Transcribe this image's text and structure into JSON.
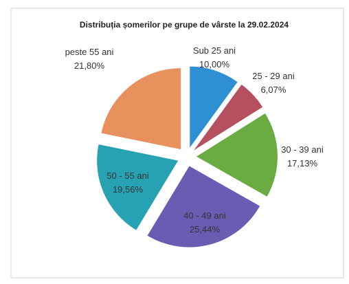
{
  "chart_data": {
    "type": "pie",
    "title": "Distribuția șomerilor pe grupe de vârste la 29.02.2024",
    "categories": [
      "Sub 25 ani",
      "25 - 29 ani",
      "30 - 39 ani",
      "40 - 49 ani",
      "50 - 55 ani",
      "peste 55 ani"
    ],
    "values": [
      10.0,
      6.07,
      17.13,
      25.44,
      19.56,
      21.8
    ],
    "value_labels": [
      "10,00%",
      "6,07%",
      "17,13%",
      "25,44%",
      "19,56%",
      "21,80%"
    ],
    "colors": [
      "#2e8fd2",
      "#b5505f",
      "#6aab42",
      "#6a5cb3",
      "#27a2b3",
      "#e8915d"
    ]
  }
}
